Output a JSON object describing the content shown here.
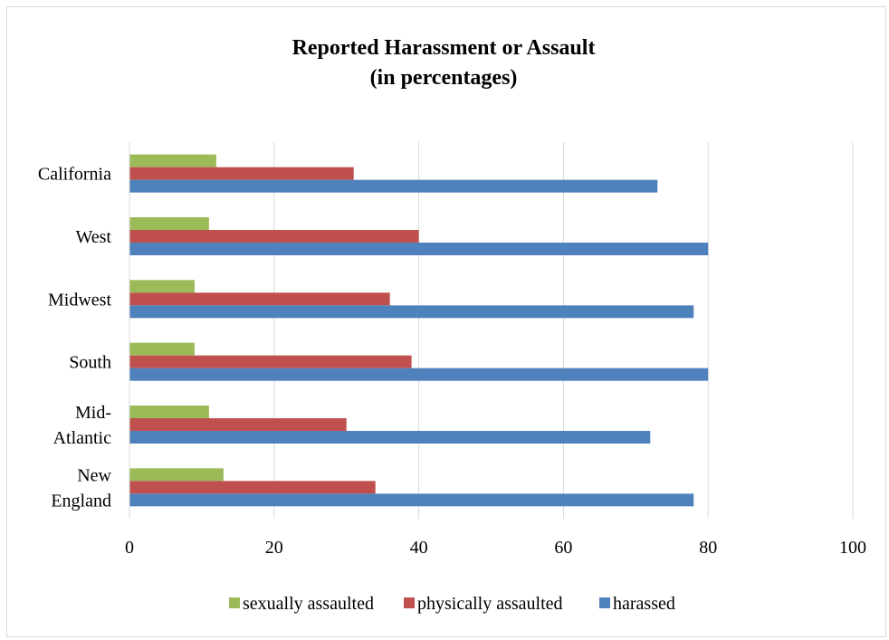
{
  "chart_data": {
    "type": "bar",
    "orientation": "horizontal",
    "title": [
      "Reported Harassment or Assault",
      "(in percentages)"
    ],
    "categories": [
      "New England",
      "Mid-Atlantic",
      "South",
      "Midwest",
      "West",
      "California"
    ],
    "category_labels": [
      [
        "New",
        "England"
      ],
      [
        "Mid-",
        "Atlantic"
      ],
      [
        "South"
      ],
      [
        "Midwest"
      ],
      [
        "West"
      ],
      [
        "California"
      ]
    ],
    "series": [
      {
        "name": "harassed",
        "color": "#4f81bd",
        "values": [
          78,
          72,
          80,
          78,
          80,
          73
        ]
      },
      {
        "name": "physically assaulted",
        "color": "#c0504d",
        "values": [
          34,
          30,
          39,
          36,
          40,
          31
        ]
      },
      {
        "name": "sexually assaulted",
        "color": "#9bbb59",
        "values": [
          13,
          11,
          9,
          9,
          11,
          12
        ]
      }
    ],
    "legend_order": [
      "sexually assaulted",
      "physically assaulted",
      "harassed"
    ],
    "xlim": [
      0,
      100
    ],
    "xticks": [
      0,
      20,
      40,
      60,
      80,
      100
    ],
    "grid": true,
    "legend_position": "bottom"
  }
}
